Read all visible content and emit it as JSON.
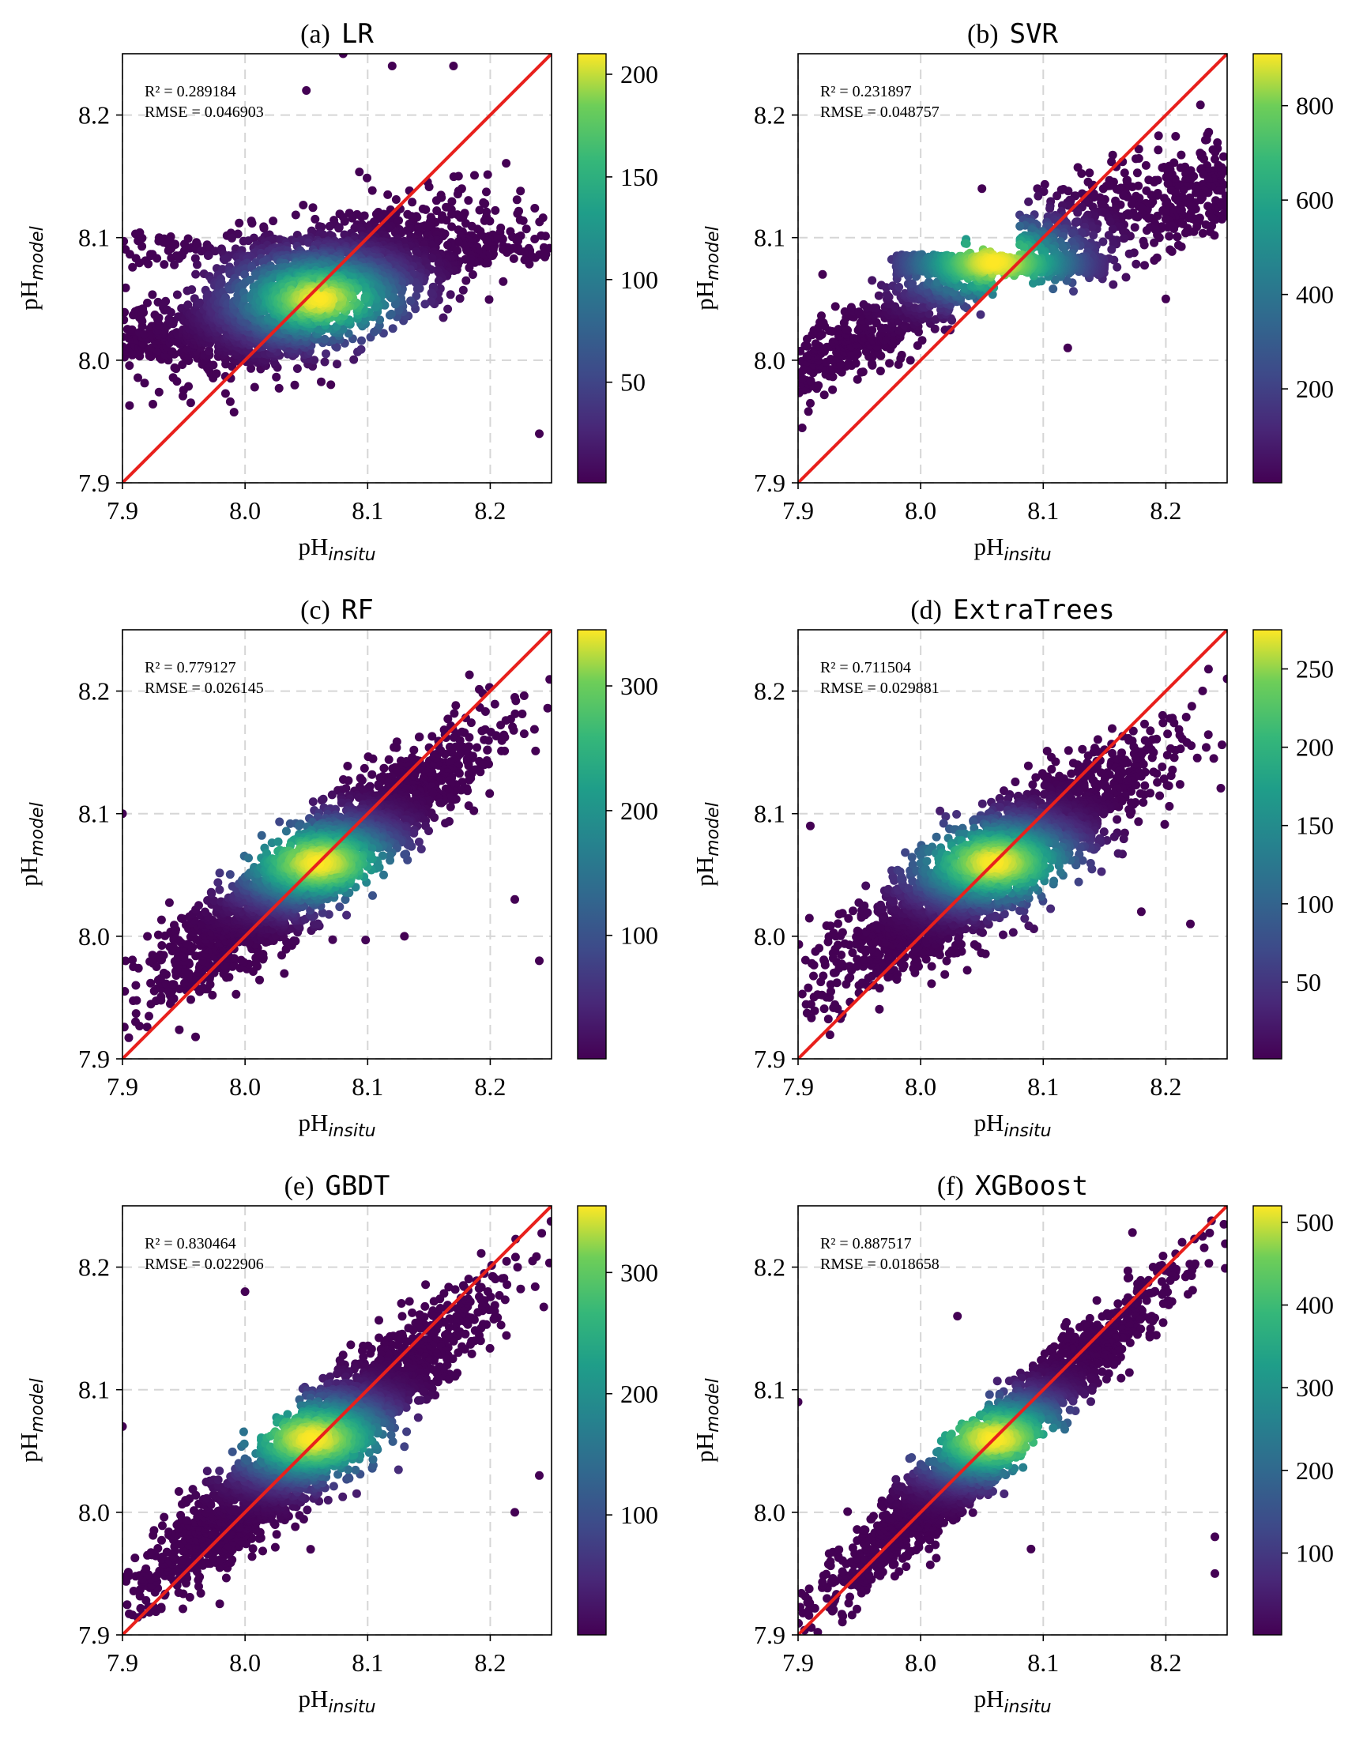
{
  "figure": {
    "x_label_main": "pH",
    "x_label_sub": "insitu",
    "y_label_main": "pH",
    "y_label_sub": "model"
  },
  "chart_data": [
    {
      "type": "scatter",
      "panel": "(a)",
      "title_letter": "(a)",
      "model": "LR",
      "r2_text": "R² = 0.289184",
      "rmse_text": "RMSE = 0.046903",
      "xlim": [
        7.9,
        8.25
      ],
      "ylim": [
        7.9,
        8.25
      ],
      "xticks": [
        7.9,
        8.0,
        8.1,
        8.2
      ],
      "yticks": [
        7.9,
        8.0,
        8.1,
        8.2
      ],
      "tick_labels": [
        "7.9",
        "8.0",
        "8.1",
        "8.2"
      ],
      "colorbar": {
        "min": 1,
        "max": 210,
        "ticks": [
          50,
          100,
          150,
          200
        ],
        "labels": [
          "50",
          "100",
          "150",
          "200"
        ]
      },
      "density_peak": [
        8.06,
        8.05
      ],
      "identity_line": {
        "from": [
          7.9,
          7.9
        ],
        "to": [
          8.25,
          8.25
        ],
        "color": "#e8201c"
      },
      "trend": {
        "slope": 0.32,
        "intercept_at_8_05": 8.055,
        "spread_y": 0.025
      },
      "outliers": [
        [
          8.08,
          8.25
        ],
        [
          8.12,
          8.24
        ],
        [
          8.17,
          8.24
        ],
        [
          8.05,
          8.22
        ],
        [
          8.24,
          7.94
        ],
        [
          8.07,
          7.98
        ],
        [
          7.93,
          8.1
        ]
      ]
    },
    {
      "type": "scatter",
      "panel": "(b)",
      "title_letter": "(b)",
      "model": "SVR",
      "r2_text": "R² = 0.231897",
      "rmse_text": "RMSE = 0.048757",
      "xlim": [
        7.9,
        8.25
      ],
      "ylim": [
        7.9,
        8.25
      ],
      "xticks": [
        7.9,
        8.0,
        8.1,
        8.2
      ],
      "yticks": [
        7.9,
        8.0,
        8.1,
        8.2
      ],
      "tick_labels": [
        "7.9",
        "8.0",
        "8.1",
        "8.2"
      ],
      "colorbar": {
        "min": 1,
        "max": 910,
        "ticks": [
          200,
          400,
          600,
          800
        ],
        "labels": [
          "200",
          "400",
          "600",
          "800"
        ]
      },
      "density_peak": [
        8.06,
        8.08
      ],
      "identity_line": {
        "from": [
          7.9,
          7.9
        ],
        "to": [
          8.25,
          8.25
        ],
        "color": "#e8201c"
      },
      "trend": {
        "slope": 0.15,
        "intercept_at_8_05": 8.075,
        "spread_y": 0.03
      },
      "outliers": [
        [
          8.2,
          8.05
        ],
        [
          8.12,
          8.01
        ],
        [
          8.05,
          8.14
        ],
        [
          7.92,
          8.07
        ]
      ]
    },
    {
      "type": "scatter",
      "panel": "(c)",
      "title_letter": "(c)",
      "model": "RF",
      "r2_text": "R² = 0.779127",
      "rmse_text": "RMSE = 0.026145",
      "xlim": [
        7.9,
        8.25
      ],
      "ylim": [
        7.9,
        8.25
      ],
      "xticks": [
        7.9,
        8.0,
        8.1,
        8.2
      ],
      "yticks": [
        7.9,
        8.0,
        8.1,
        8.2
      ],
      "tick_labels": [
        "7.9",
        "8.0",
        "8.1",
        "8.2"
      ],
      "colorbar": {
        "min": 1,
        "max": 345,
        "ticks": [
          100,
          200,
          300
        ],
        "labels": [
          "100",
          "200",
          "300"
        ]
      },
      "density_peak": [
        8.06,
        8.06
      ],
      "identity_line": {
        "from": [
          7.9,
          7.9
        ],
        "to": [
          8.25,
          8.25
        ],
        "color": "#e8201c"
      },
      "trend": {
        "slope": 0.72,
        "intercept_at_8_05": 8.052,
        "spread_y": 0.02
      },
      "outliers": [
        [
          8.24,
          7.98
        ],
        [
          8.22,
          8.03
        ],
        [
          7.9,
          8.1
        ],
        [
          8.13,
          8.0
        ]
      ]
    },
    {
      "type": "scatter",
      "panel": "(d)",
      "title_letter": "(d)",
      "model": "ExtraTrees",
      "r2_text": "R² = 0.711504",
      "rmse_text": "RMSE = 0.029881",
      "xlim": [
        7.9,
        8.25
      ],
      "ylim": [
        7.9,
        8.25
      ],
      "xticks": [
        7.9,
        8.0,
        8.1,
        8.2
      ],
      "yticks": [
        7.9,
        8.0,
        8.1,
        8.2
      ],
      "tick_labels": [
        "7.9",
        "8.0",
        "8.1",
        "8.2"
      ],
      "colorbar": {
        "min": 1,
        "max": 275,
        "ticks": [
          50,
          100,
          150,
          200,
          250
        ],
        "labels": [
          "50",
          "100",
          "150",
          "200",
          "250"
        ]
      },
      "density_peak": [
        8.06,
        8.06
      ],
      "identity_line": {
        "from": [
          7.9,
          7.9
        ],
        "to": [
          8.25,
          8.25
        ],
        "color": "#e8201c"
      },
      "trend": {
        "slope": 0.62,
        "intercept_at_8_05": 8.052,
        "spread_y": 0.022
      },
      "outliers": [
        [
          8.22,
          8.01
        ],
        [
          8.25,
          8.21
        ],
        [
          7.91,
          8.09
        ],
        [
          8.18,
          8.02
        ]
      ]
    },
    {
      "type": "scatter",
      "panel": "(e)",
      "title_letter": "(e)",
      "model": "GBDT",
      "r2_text": "R² = 0.830464",
      "rmse_text": "RMSE = 0.022906",
      "xlim": [
        7.9,
        8.25
      ],
      "ylim": [
        7.9,
        8.25
      ],
      "xticks": [
        7.9,
        8.0,
        8.1,
        8.2
      ],
      "yticks": [
        7.9,
        8.0,
        8.1,
        8.2
      ],
      "tick_labels": [
        "7.9",
        "8.0",
        "8.1",
        "8.2"
      ],
      "colorbar": {
        "min": 1,
        "max": 355,
        "ticks": [
          100,
          200,
          300
        ],
        "labels": [
          "100",
          "200",
          "300"
        ]
      },
      "density_peak": [
        8.055,
        8.06
      ],
      "identity_line": {
        "from": [
          7.9,
          7.9
        ],
        "to": [
          8.25,
          8.25
        ],
        "color": "#e8201c"
      },
      "trend": {
        "slope": 0.8,
        "intercept_at_8_05": 8.05,
        "spread_y": 0.02
      },
      "outliers": [
        [
          8.0,
          8.18
        ],
        [
          7.9,
          8.07
        ],
        [
          8.24,
          8.03
        ],
        [
          8.22,
          8.0
        ]
      ]
    },
    {
      "type": "scatter",
      "panel": "(f)",
      "title_letter": "(f)",
      "model": "XGBoost",
      "r2_text": "R² = 0.887517",
      "rmse_text": "RMSE = 0.018658",
      "xlim": [
        7.9,
        8.25
      ],
      "ylim": [
        7.9,
        8.25
      ],
      "xticks": [
        7.9,
        8.0,
        8.1,
        8.2
      ],
      "yticks": [
        7.9,
        8.0,
        8.1,
        8.2
      ],
      "tick_labels": [
        "7.9",
        "8.0",
        "8.1",
        "8.2"
      ],
      "colorbar": {
        "min": 1,
        "max": 520,
        "ticks": [
          100,
          200,
          300,
          400,
          500
        ],
        "labels": [
          "100",
          "200",
          "300",
          "400",
          "500"
        ]
      },
      "density_peak": [
        8.06,
        8.06
      ],
      "identity_line": {
        "from": [
          7.9,
          7.9
        ],
        "to": [
          8.25,
          8.25
        ],
        "color": "#e8201c"
      },
      "trend": {
        "slope": 0.9,
        "intercept_at_8_05": 8.05,
        "spread_y": 0.016
      },
      "outliers": [
        [
          8.24,
          7.95
        ],
        [
          8.24,
          7.98
        ],
        [
          8.09,
          7.97
        ],
        [
          7.9,
          8.09
        ],
        [
          8.03,
          8.16
        ]
      ]
    }
  ]
}
